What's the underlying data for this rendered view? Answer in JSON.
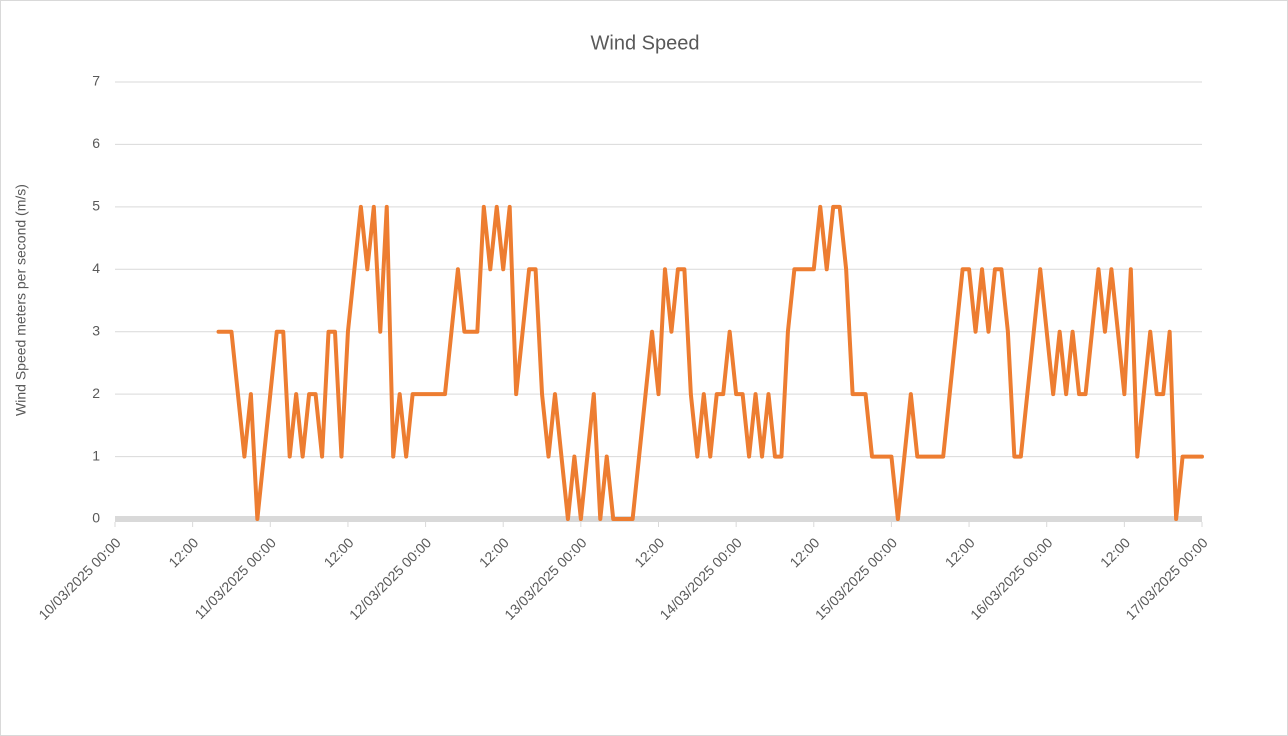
{
  "chart_data": {
    "type": "line",
    "title": "Wind Speed",
    "y_label": "Wind Speed meters per second (m/s)",
    "color": "#ed7d31",
    "grid": true,
    "xlim": [
      "10/03/2025 00:00",
      "17/03/2025 00:00"
    ],
    "xticks": [
      "10/03/2025 00:00",
      {
        "value": "10/03/2025 12:00",
        "label": "12:00"
      },
      "11/03/2025 00:00",
      {
        "value": "11/03/2025 12:00",
        "label": "12:00"
      },
      "12/03/2025 00:00",
      {
        "value": "12/03/2025 12:00",
        "label": "12:00"
      },
      "13/03/2025 00:00",
      {
        "value": "13/03/2025 12:00",
        "label": "12:00"
      },
      "14/03/2025 00:00",
      {
        "value": "14/03/2025 12:00",
        "label": "12:00"
      },
      "15/03/2025 00:00",
      {
        "value": "15/03/2025 12:00",
        "label": "12:00"
      },
      "16/03/2025 00:00",
      {
        "value": "16/03/2025 12:00",
        "label": "12:00"
      },
      "17/03/2025 00:00"
    ],
    "ylim": [
      0,
      7
    ],
    "yticks": [
      0,
      1,
      2,
      3,
      4,
      5,
      6,
      7
    ],
    "x": [
      "10/03/2025 16:00",
      "10/03/2025 17:00",
      "10/03/2025 18:00",
      "10/03/2025 19:00",
      "10/03/2025 20:00",
      "10/03/2025 21:00",
      "10/03/2025 22:00",
      "10/03/2025 23:00",
      "11/03/2025 00:00",
      "11/03/2025 01:00",
      "11/03/2025 02:00",
      "11/03/2025 03:00",
      "11/03/2025 04:00",
      "11/03/2025 05:00",
      "11/03/2025 06:00",
      "11/03/2025 07:00",
      "11/03/2025 08:00",
      "11/03/2025 09:00",
      "11/03/2025 10:00",
      "11/03/2025 11:00",
      "11/03/2025 12:00",
      "11/03/2025 13:00",
      "11/03/2025 14:00",
      "11/03/2025 15:00",
      "11/03/2025 16:00",
      "11/03/2025 17:00",
      "11/03/2025 18:00",
      "11/03/2025 19:00",
      "11/03/2025 20:00",
      "11/03/2025 21:00",
      "11/03/2025 22:00",
      "11/03/2025 23:00",
      "12/03/2025 00:00",
      "12/03/2025 01:00",
      "12/03/2025 02:00",
      "12/03/2025 03:00",
      "12/03/2025 04:00",
      "12/03/2025 05:00",
      "12/03/2025 06:00",
      "12/03/2025 07:00",
      "12/03/2025 08:00",
      "12/03/2025 09:00",
      "12/03/2025 10:00",
      "12/03/2025 11:00",
      "12/03/2025 12:00",
      "12/03/2025 13:00",
      "12/03/2025 14:00",
      "12/03/2025 15:00",
      "12/03/2025 16:00",
      "12/03/2025 17:00",
      "12/03/2025 18:00",
      "12/03/2025 19:00",
      "12/03/2025 20:00",
      "12/03/2025 21:00",
      "12/03/2025 22:00",
      "12/03/2025 23:00",
      "13/03/2025 00:00",
      "13/03/2025 01:00",
      "13/03/2025 02:00",
      "13/03/2025 03:00",
      "13/03/2025 04:00",
      "13/03/2025 05:00",
      "13/03/2025 06:00",
      "13/03/2025 07:00",
      "13/03/2025 08:00",
      "13/03/2025 09:00",
      "13/03/2025 10:00",
      "13/03/2025 11:00",
      "13/03/2025 12:00",
      "13/03/2025 13:00",
      "13/03/2025 14:00",
      "13/03/2025 15:00",
      "13/03/2025 16:00",
      "13/03/2025 17:00",
      "13/03/2025 18:00",
      "13/03/2025 19:00",
      "13/03/2025 20:00",
      "13/03/2025 21:00",
      "13/03/2025 22:00",
      "13/03/2025 23:00",
      "14/03/2025 00:00",
      "14/03/2025 01:00",
      "14/03/2025 02:00",
      "14/03/2025 03:00",
      "14/03/2025 04:00",
      "14/03/2025 05:00",
      "14/03/2025 06:00",
      "14/03/2025 07:00",
      "14/03/2025 08:00",
      "14/03/2025 09:00",
      "14/03/2025 10:00",
      "14/03/2025 11:00",
      "14/03/2025 12:00",
      "14/03/2025 13:00",
      "14/03/2025 14:00",
      "14/03/2025 15:00",
      "14/03/2025 16:00",
      "14/03/2025 17:00",
      "14/03/2025 18:00",
      "14/03/2025 19:00",
      "14/03/2025 20:00",
      "14/03/2025 21:00",
      "14/03/2025 22:00",
      "14/03/2025 23:00",
      "15/03/2025 00:00",
      "15/03/2025 01:00",
      "15/03/2025 02:00",
      "15/03/2025 03:00",
      "15/03/2025 04:00",
      "15/03/2025 05:00",
      "15/03/2025 06:00",
      "15/03/2025 07:00",
      "15/03/2025 08:00",
      "15/03/2025 09:00",
      "15/03/2025 10:00",
      "15/03/2025 11:00",
      "15/03/2025 12:00",
      "15/03/2025 13:00",
      "15/03/2025 14:00",
      "15/03/2025 15:00",
      "15/03/2025 16:00",
      "15/03/2025 17:00",
      "15/03/2025 18:00",
      "15/03/2025 19:00",
      "15/03/2025 20:00",
      "15/03/2025 21:00",
      "15/03/2025 22:00",
      "15/03/2025 23:00",
      "16/03/2025 00:00",
      "16/03/2025 01:00",
      "16/03/2025 02:00",
      "16/03/2025 03:00",
      "16/03/2025 04:00",
      "16/03/2025 05:00",
      "16/03/2025 06:00",
      "16/03/2025 07:00",
      "16/03/2025 08:00",
      "16/03/2025 09:00",
      "16/03/2025 10:00",
      "16/03/2025 11:00",
      "16/03/2025 12:00",
      "16/03/2025 13:00",
      "16/03/2025 14:00",
      "16/03/2025 15:00",
      "16/03/2025 16:00",
      "16/03/2025 17:00",
      "16/03/2025 18:00",
      "16/03/2025 19:00",
      "16/03/2025 20:00",
      "16/03/2025 21:00",
      "16/03/2025 22:00",
      "16/03/2025 23:00",
      "17/03/2025 00:00"
    ],
    "values": [
      3,
      3,
      3,
      2,
      1,
      2,
      0,
      1,
      2,
      3,
      3,
      1,
      2,
      1,
      2,
      2,
      1,
      3,
      3,
      1,
      3,
      4,
      5,
      4,
      5,
      3,
      5,
      1,
      2,
      1,
      2,
      2,
      2,
      2,
      2,
      2,
      3,
      4,
      3,
      3,
      3,
      5,
      4,
      5,
      4,
      5,
      2,
      3,
      4,
      4,
      2,
      1,
      2,
      1,
      0,
      1,
      0,
      1,
      2,
      0,
      1,
      0,
      0,
      0,
      0,
      1,
      2,
      3,
      2,
      4,
      3,
      4,
      4,
      2,
      1,
      2,
      1,
      2,
      2,
      3,
      2,
      2,
      1,
      2,
      1,
      2,
      1,
      1,
      3,
      4,
      4,
      4,
      4,
      5,
      4,
      5,
      5,
      4,
      2,
      2,
      2,
      1,
      1,
      1,
      1,
      0,
      1,
      2,
      1,
      1,
      1,
      1,
      1,
      2,
      3,
      4,
      4,
      3,
      4,
      3,
      4,
      4,
      3,
      1,
      1,
      2,
      3,
      4,
      3,
      2,
      3,
      2,
      3,
      2,
      2,
      3,
      4,
      3,
      4,
      3,
      2,
      4,
      1,
      2,
      3,
      2,
      2,
      3,
      0,
      1,
      1,
      1,
      1
    ]
  }
}
